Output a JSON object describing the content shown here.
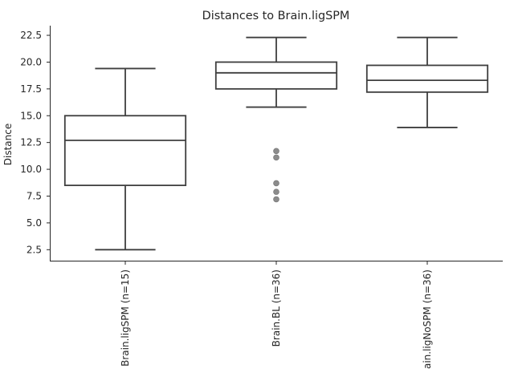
{
  "chart_data": {
    "type": "box",
    "title": "Distances to Brain.ligSPM",
    "xlabel": "",
    "ylabel": "Distance",
    "ylim": [
      1.4,
      23.4
    ],
    "yticks": [
      2.5,
      5.0,
      7.5,
      10.0,
      12.5,
      15.0,
      17.5,
      20.0,
      22.5
    ],
    "ytick_labels": [
      "2.5",
      "5.0",
      "7.5",
      "10.0",
      "12.5",
      "15.0",
      "17.5",
      "20.0",
      "22.5"
    ],
    "grid": false,
    "categories": [
      "Brain.ligSPM (n=15)",
      "Brain.BL (n=36)",
      "ain.ligNoSPM (n=36)"
    ],
    "boxes": [
      {
        "whisker_low": 2.5,
        "q1": 8.5,
        "median": 12.7,
        "q3": 15.0,
        "whisker_high": 19.4,
        "outliers": []
      },
      {
        "whisker_low": 15.8,
        "q1": 17.5,
        "median": 19.0,
        "q3": 20.0,
        "whisker_high": 22.3,
        "outliers": [
          11.7,
          11.1,
          8.7,
          7.9,
          7.2
        ]
      },
      {
        "whisker_low": 13.9,
        "q1": 17.2,
        "median": 18.3,
        "q3": 19.7,
        "whisker_high": 22.3,
        "outliers": []
      }
    ],
    "colors": {
      "box_edge": "#3f3f3f",
      "box_fill": "#ffffff",
      "outlier": "#8c8c8c",
      "axis": "#262626",
      "text": "#262626"
    }
  }
}
